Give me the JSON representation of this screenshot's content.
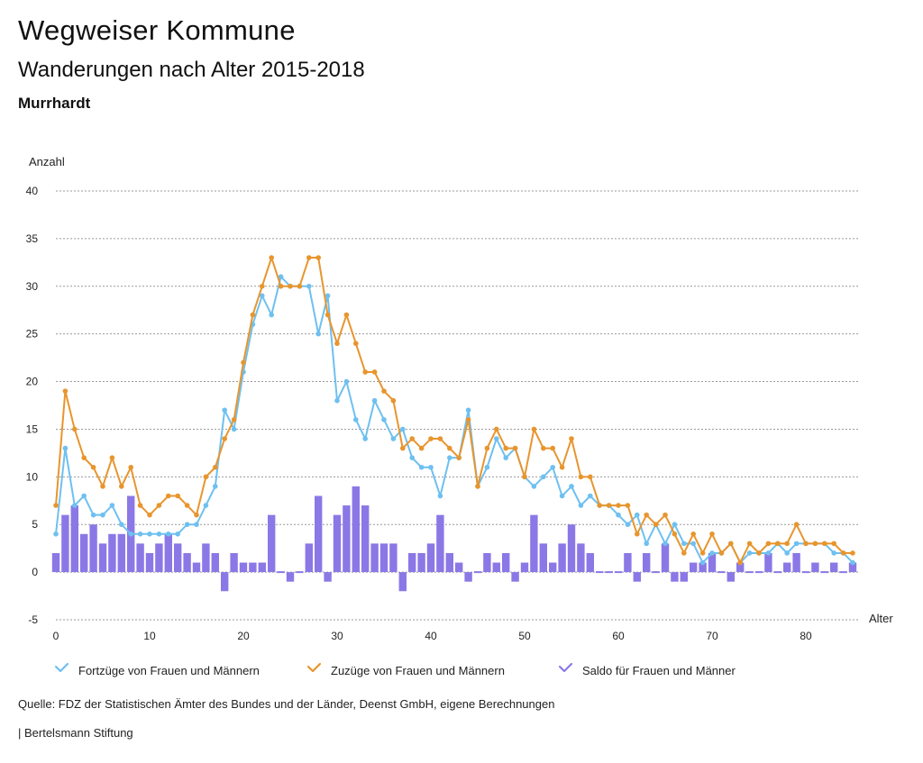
{
  "header": {
    "title": "Wegweiser Kommune",
    "subtitle": "Wanderungen nach Alter 2015-2018",
    "place": "Murrhardt"
  },
  "footer": {
    "source": "Quelle: FDZ der Statistischen Ämter des Bundes und der Länder, Deenst GmbH, eigene Berechnungen",
    "publisher": "| Bertelsmann Stiftung"
  },
  "chart_data": {
    "type": "line",
    "title": "Wanderungen nach Alter 2015-2018",
    "ylabel": "Anzahl",
    "xlabel": "Alter",
    "ylim": [
      -5,
      40
    ],
    "yticks": [
      -5,
      0,
      5,
      10,
      15,
      20,
      25,
      30,
      35,
      40
    ],
    "xlim": [
      0,
      85
    ],
    "xticks": [
      0,
      10,
      20,
      30,
      40,
      50,
      60,
      70,
      80
    ],
    "grid": true,
    "legend_position": "bottom",
    "x": [
      0,
      1,
      2,
      3,
      4,
      5,
      6,
      7,
      8,
      9,
      10,
      11,
      12,
      13,
      14,
      15,
      16,
      17,
      18,
      19,
      20,
      21,
      22,
      23,
      24,
      25,
      26,
      27,
      28,
      29,
      30,
      31,
      32,
      33,
      34,
      35,
      36,
      37,
      38,
      39,
      40,
      41,
      42,
      43,
      44,
      45,
      46,
      47,
      48,
      49,
      50,
      51,
      52,
      53,
      54,
      55,
      56,
      57,
      58,
      59,
      60,
      61,
      62,
      63,
      64,
      65,
      66,
      67,
      68,
      69,
      70,
      71,
      72,
      73,
      74,
      75,
      76,
      77,
      78,
      79,
      80,
      81,
      82,
      83,
      84,
      85
    ],
    "series": [
      {
        "name": "Fortzüge von Frauen und Männern",
        "kind": "line",
        "color": "#6ec0f0",
        "values": [
          4,
          13,
          7,
          8,
          6,
          6,
          7,
          5,
          4,
          4,
          4,
          4,
          4,
          4,
          5,
          5,
          7,
          9,
          17,
          15,
          21,
          26,
          29,
          27,
          31,
          30,
          30,
          30,
          25,
          29,
          18,
          20,
          16,
          14,
          18,
          16,
          14,
          15,
          12,
          11,
          11,
          8,
          12,
          12,
          17,
          9,
          11,
          14,
          12,
          13,
          10,
          9,
          10,
          11,
          8,
          9,
          7,
          8,
          7,
          7,
          6,
          5,
          6,
          3,
          5,
          3,
          5,
          3,
          3,
          1,
          2,
          2,
          3,
          1,
          2,
          2,
          2,
          3,
          2,
          3,
          3,
          3,
          3,
          2,
          2,
          1
        ]
      },
      {
        "name": "Zuzüge von Frauen und Männern",
        "kind": "line",
        "color": "#e8952d",
        "values": [
          7,
          19,
          15,
          12,
          11,
          9,
          12,
          9,
          11,
          7,
          6,
          7,
          8,
          8,
          7,
          6,
          10,
          11,
          14,
          16,
          22,
          27,
          30,
          33,
          30,
          30,
          30,
          33,
          33,
          27,
          24,
          27,
          24,
          21,
          21,
          19,
          18,
          13,
          14,
          13,
          14,
          14,
          13,
          12,
          16,
          9,
          13,
          15,
          13,
          13,
          10,
          15,
          13,
          13,
          11,
          14,
          10,
          10,
          7,
          7,
          7,
          7,
          4,
          6,
          5,
          6,
          4,
          2,
          4,
          2,
          4,
          2,
          3,
          1,
          3,
          2,
          3,
          3,
          3,
          5,
          3,
          3,
          3,
          3,
          2,
          2
        ]
      },
      {
        "name": "Saldo für Frauen und Männer",
        "kind": "bar",
        "color": "#8b78e6",
        "values": [
          2,
          6,
          7,
          4,
          5,
          3,
          4,
          4,
          8,
          3,
          2,
          3,
          4,
          3,
          2,
          1,
          3,
          2,
          -2,
          2,
          1,
          1,
          1,
          6,
          0,
          -1,
          0,
          3,
          8,
          -1,
          6,
          7,
          9,
          7,
          3,
          3,
          3,
          -2,
          2,
          2,
          3,
          6,
          2,
          1,
          -1,
          0,
          2,
          1,
          2,
          -1,
          1,
          6,
          3,
          1,
          3,
          5,
          3,
          2,
          0,
          0,
          0,
          2,
          -1,
          2,
          0,
          3,
          -1,
          -1,
          1,
          1,
          2,
          0,
          -1,
          1,
          0,
          0,
          2,
          0,
          1,
          2,
          0,
          1,
          0,
          1,
          0,
          1
        ]
      }
    ]
  }
}
